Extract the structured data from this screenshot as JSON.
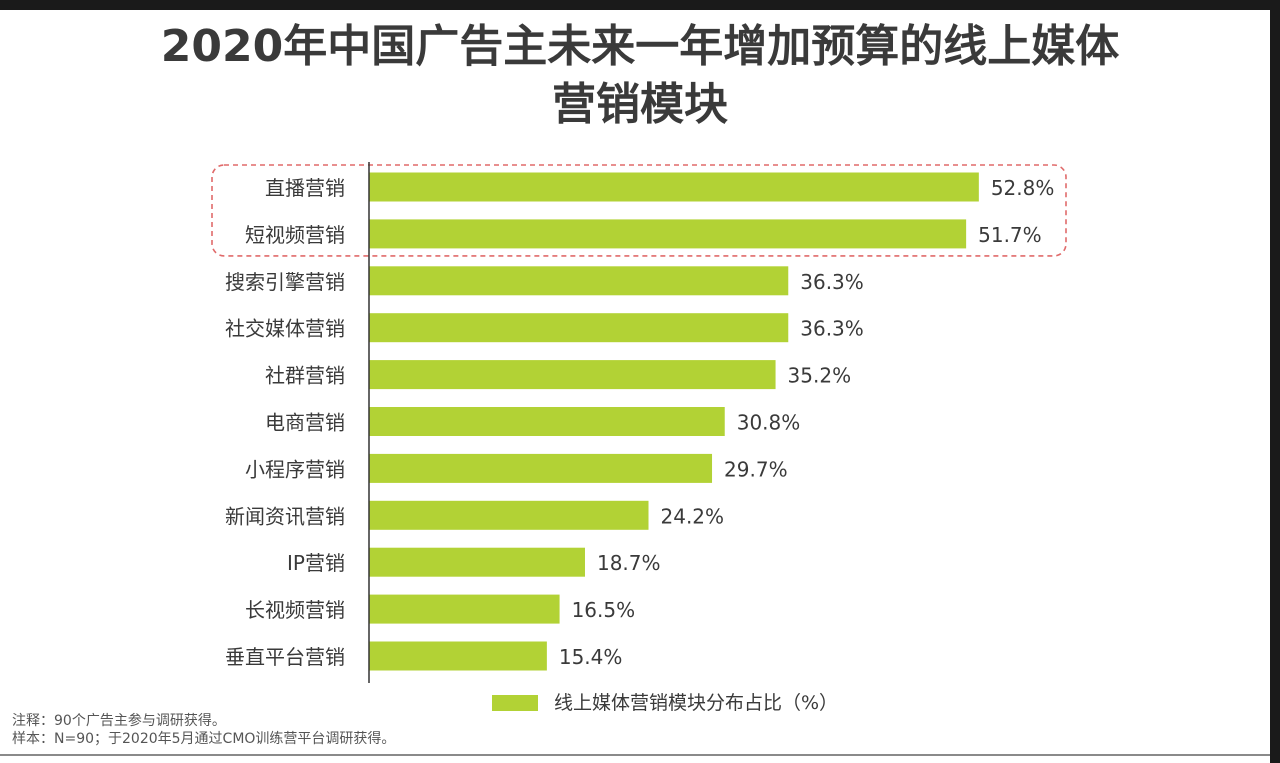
{
  "colors": {
    "bar": "#b2d235",
    "highlight_box": "#e06a6a",
    "axis": "#333333",
    "text": "#3a3a3a"
  },
  "chart_data": {
    "type": "bar",
    "orientation": "horizontal",
    "title_line1": "2020年中国广告主未来一年增加预算的线上媒体",
    "title_line2": "营销模块",
    "categories": [
      "直播营销",
      "短视频营销",
      "搜索引擎营销",
      "社交媒体营销",
      "社群营销",
      "电商营销",
      "小程序营销",
      "新闻资讯营销",
      "IP营销",
      "长视频营销",
      "垂直平台营销"
    ],
    "series": [
      {
        "name": "线上媒体营销模块分布占比（%）",
        "values": [
          52.8,
          51.7,
          36.3,
          36.3,
          35.2,
          30.8,
          29.7,
          24.2,
          18.7,
          16.5,
          15.4
        ]
      }
    ],
    "data_labels": [
      "52.8%",
      "51.7%",
      "36.3%",
      "36.3%",
      "35.2%",
      "30.8%",
      "29.7%",
      "24.2%",
      "18.7%",
      "16.5%",
      "15.4%"
    ],
    "xlim": [
      0,
      55
    ],
    "grid": false,
    "legend_position": "bottom",
    "highlighted_categories": [
      "直播营销",
      "短视频营销"
    ]
  },
  "notes": {
    "note": "注释：90个广告主参与调研获得。",
    "sample": "样本：N=90；于2020年5月通过CMO训练营平台调研获得。"
  }
}
